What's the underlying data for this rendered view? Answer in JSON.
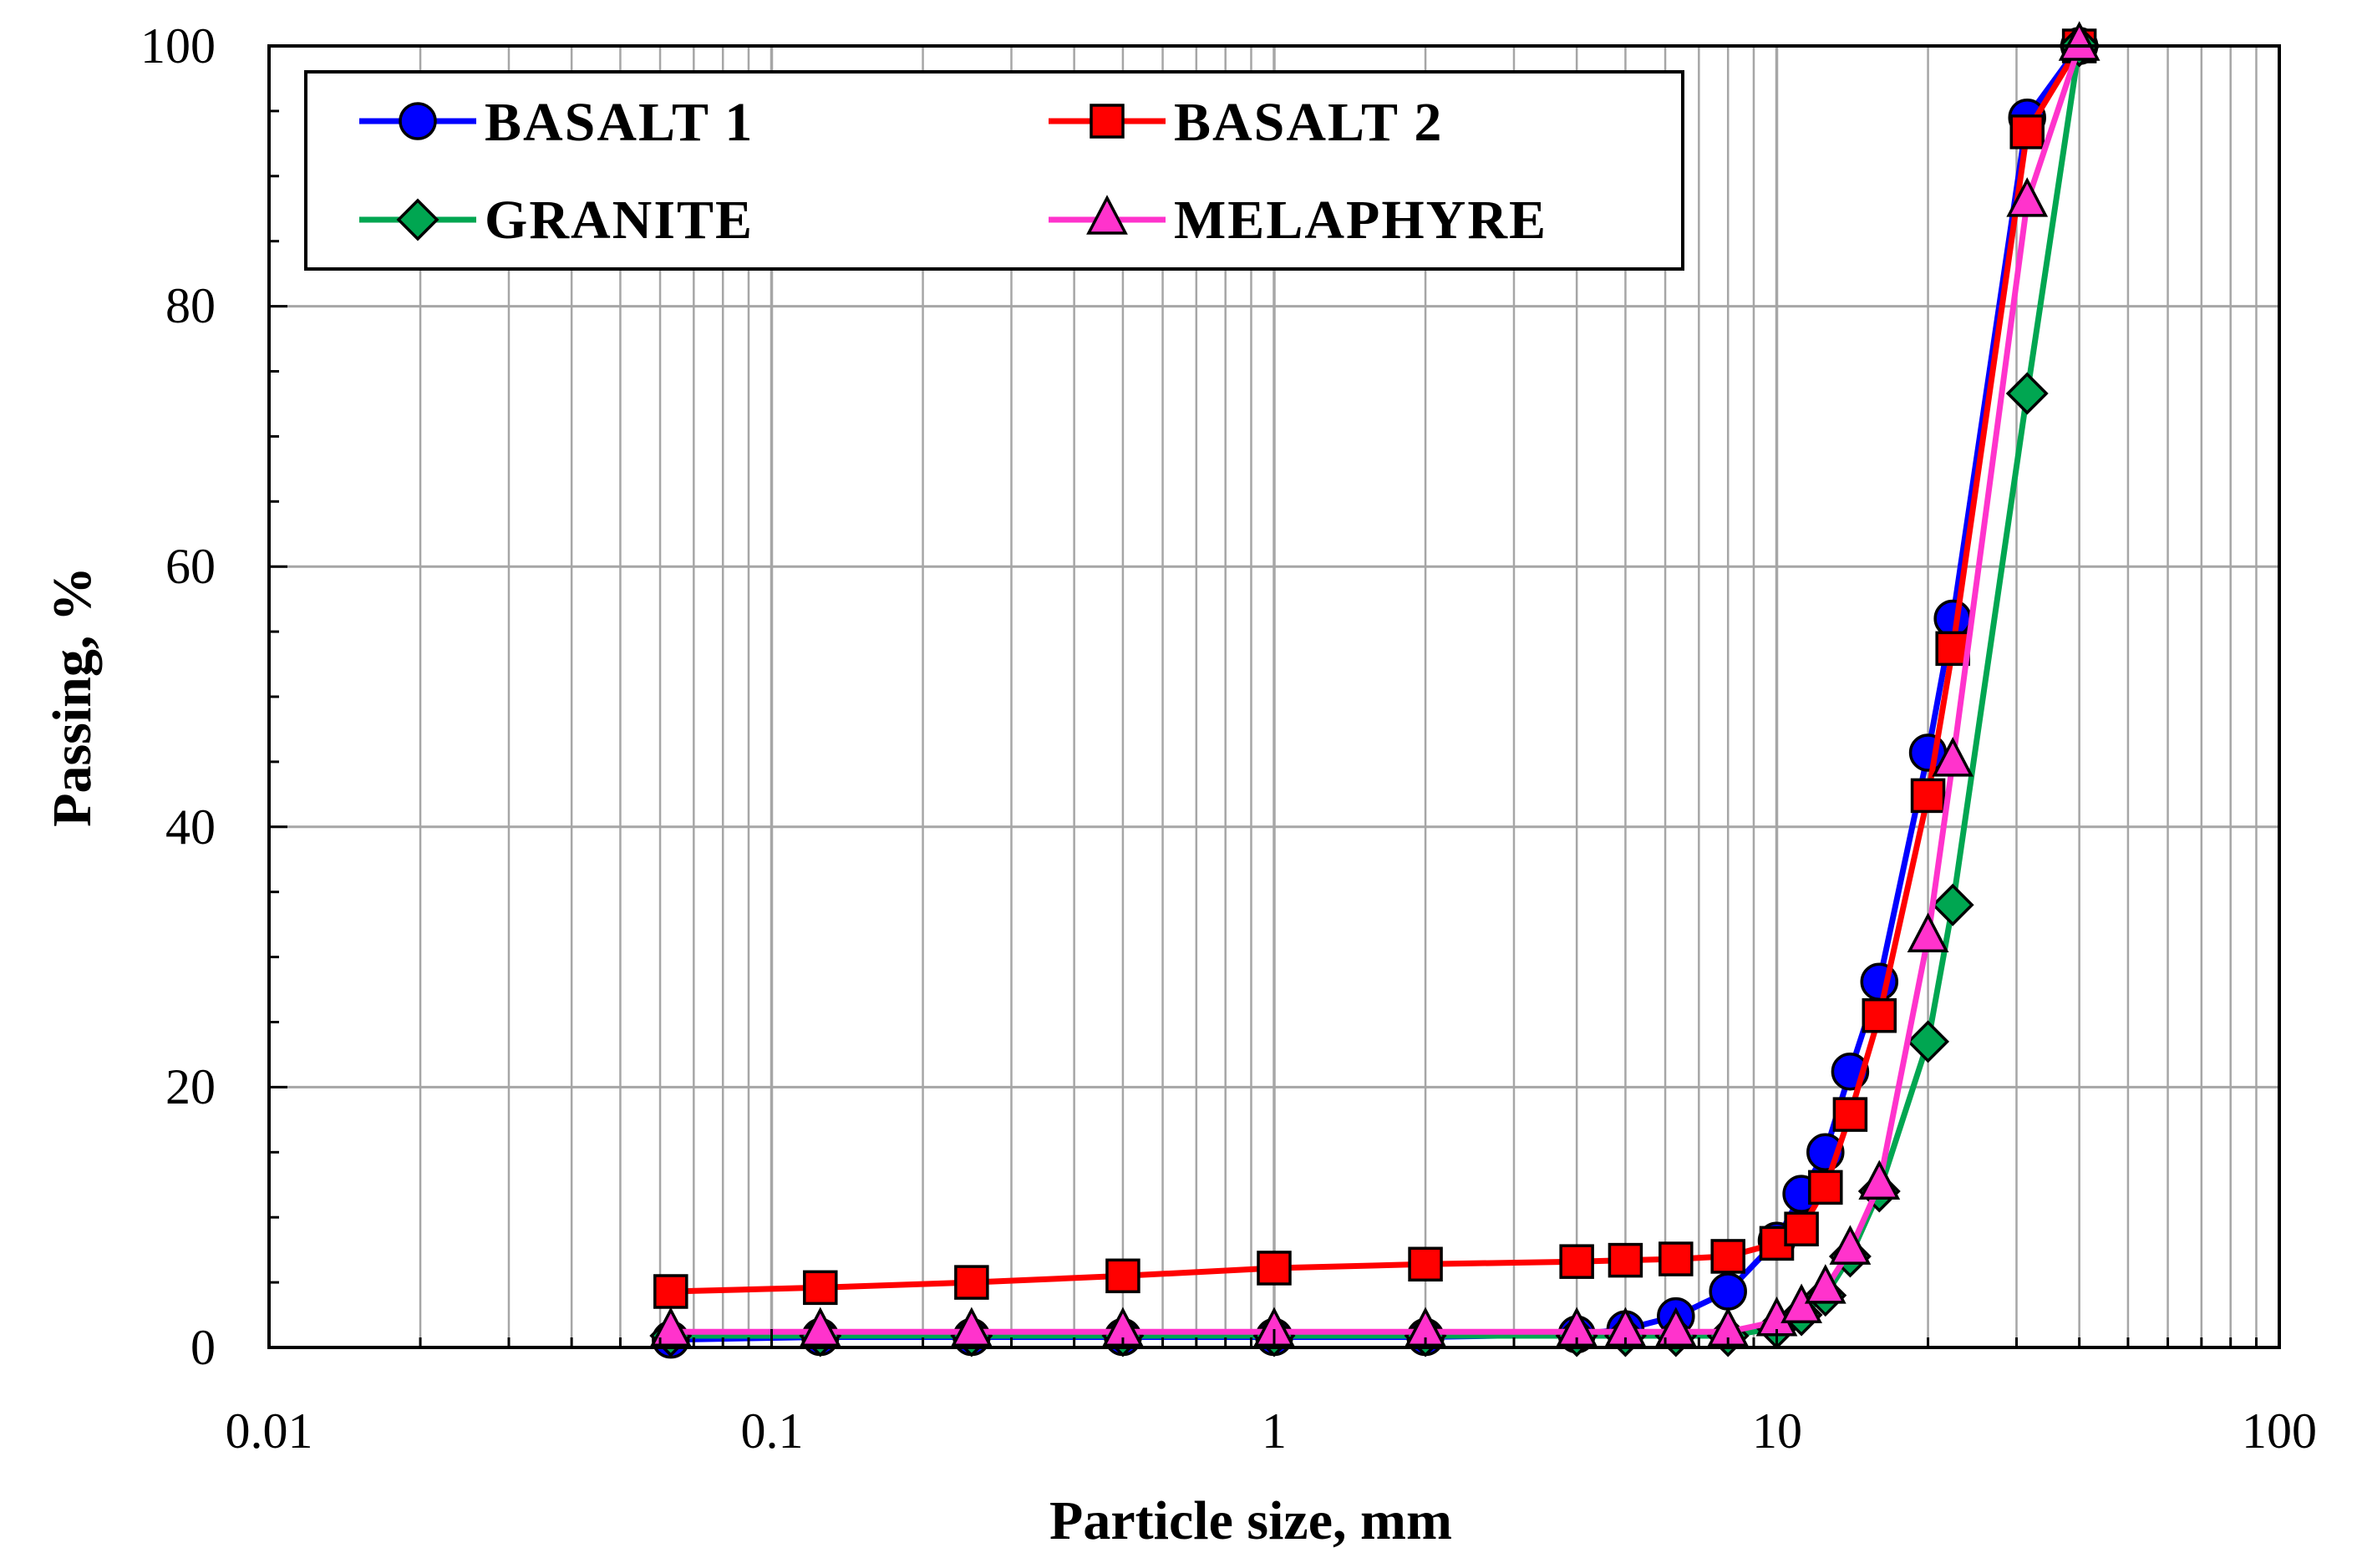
{
  "chart_data": {
    "type": "line",
    "xscale": "log",
    "xlabel": "Particle size, mm",
    "ylabel": "Passing, %",
    "xlim": [
      0.01,
      100
    ],
    "ylim": [
      0,
      100
    ],
    "grid": true,
    "legend_position": "top-left",
    "x_tick_labels": [
      "0.01",
      "0.1",
      "1",
      "10",
      "100"
    ],
    "y_tick_labels": [
      "0",
      "20",
      "40",
      "60",
      "80",
      "100"
    ],
    "series": [
      {
        "name": "BASALT 1",
        "color": "#0000ff",
        "marker": "circle",
        "x": [
          0.063,
          0.125,
          0.25,
          0.5,
          1,
          2,
          4,
          5,
          6.3,
          8,
          10,
          11.2,
          12.5,
          14,
          16,
          20,
          22.4,
          31.5,
          40
        ],
        "y": [
          0.6,
          0.8,
          0.8,
          0.8,
          0.8,
          0.8,
          1.0,
          1.4,
          2.4,
          4.3,
          8.2,
          11.8,
          15.0,
          21.2,
          28.1,
          45.7,
          56.0,
          94.5,
          100
        ]
      },
      {
        "name": "BASALT 2",
        "color": "#ff0000",
        "marker": "square",
        "x": [
          0.063,
          0.125,
          0.25,
          0.5,
          1,
          2,
          4,
          5,
          6.3,
          8,
          10,
          11.2,
          12.5,
          14,
          16,
          20,
          22.4,
          31.5,
          40
        ],
        "y": [
          4.3,
          4.6,
          5.0,
          5.5,
          6.1,
          6.4,
          6.6,
          6.7,
          6.8,
          7.0,
          8.0,
          9.1,
          12.3,
          17.9,
          25.5,
          42.4,
          53.7,
          93.4,
          100
        ]
      },
      {
        "name": "GRANITE",
        "color": "#00a651",
        "marker": "diamond",
        "x": [
          0.063,
          0.125,
          0.25,
          0.5,
          1,
          2,
          4,
          5,
          6.3,
          8,
          10,
          11.2,
          12.5,
          14,
          16,
          20,
          22.4,
          31.5,
          40
        ],
        "y": [
          0.9,
          0.9,
          0.9,
          0.9,
          0.9,
          0.9,
          0.9,
          0.9,
          0.9,
          0.9,
          1.5,
          2.5,
          4.0,
          7.0,
          12.0,
          23.5,
          34.0,
          73.3,
          100
        ]
      },
      {
        "name": "MELAPHYRE",
        "color": "#ff33cc",
        "marker": "triangle",
        "x": [
          0.063,
          0.125,
          0.25,
          0.5,
          1,
          2,
          4,
          5,
          6.3,
          8,
          10,
          11.2,
          12.5,
          14,
          16,
          20,
          22.4,
          31.5,
          40
        ],
        "y": [
          1.2,
          1.2,
          1.2,
          1.2,
          1.2,
          1.2,
          1.2,
          1.2,
          1.2,
          1.2,
          2.0,
          3.0,
          4.5,
          7.5,
          12.5,
          31.5,
          45.0,
          88.0,
          100
        ]
      }
    ]
  }
}
